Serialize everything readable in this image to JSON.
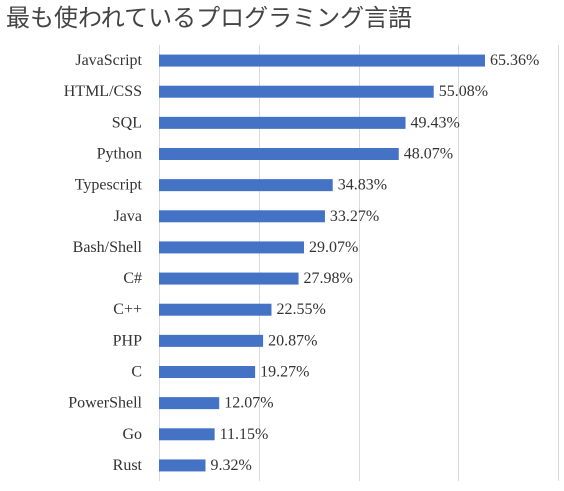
{
  "chart_data": {
    "type": "bar",
    "orientation": "horizontal",
    "title": "最も使われているプログラミング言語",
    "xlabel": "",
    "ylabel": "",
    "xlim": [
      0,
      80
    ],
    "grid": true,
    "legend": "none",
    "bar_color": "#4472C4",
    "gridline_color": "#D9D9D9",
    "categories": [
      "JavaScript",
      "HTML/CSS",
      "SQL",
      "Python",
      "Typescript",
      "Java",
      "Bash/Shell",
      "C#",
      "C++",
      "PHP",
      "C",
      "PowerShell",
      "Go",
      "Rust"
    ],
    "values": [
      65.36,
      55.08,
      49.43,
      48.07,
      34.83,
      33.27,
      29.07,
      27.98,
      22.55,
      20.87,
      19.27,
      12.07,
      11.15,
      9.32
    ],
    "value_labels": [
      "65.36%",
      "55.08%",
      "49.43%",
      "48.07%",
      "34.83%",
      "33.27%",
      "29.07%",
      "27.98%",
      "22.55%",
      "20.87%",
      "19.27%",
      "12.07%",
      "11.15%",
      "9.32%"
    ]
  }
}
